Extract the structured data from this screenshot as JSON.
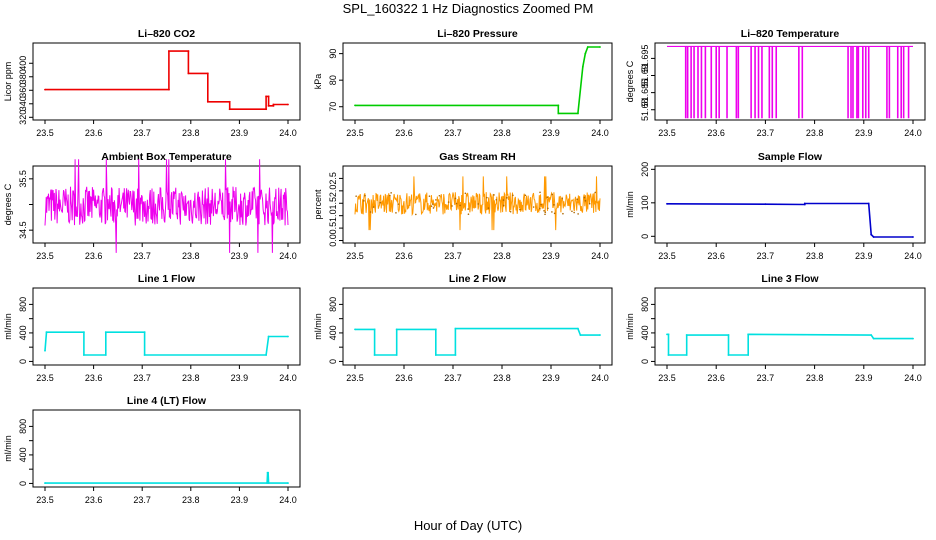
{
  "title": "SPL_160322 1 Hz Diagnostics Zoomed PM",
  "xlabel": "Hour of Day (UTC)",
  "chart_data": [
    {
      "id": "co2",
      "type": "line",
      "title": "Li–820 CO2",
      "ylabel": "Licor ppm",
      "color": "#ee0000",
      "xlim": [
        23.5,
        24.0
      ],
      "ylim": [
        316,
        430
      ],
      "xticks": [
        "23.5",
        "23.6",
        "23.7",
        "23.8",
        "23.9",
        "24.0"
      ],
      "yticks": [
        320,
        340,
        360,
        380,
        400
      ],
      "series": [
        {
          "name": "CO2",
          "x": [
            23.5,
            23.755,
            23.755,
            23.795,
            23.795,
            23.835,
            23.835,
            23.88,
            23.88,
            23.955,
            23.955,
            23.96,
            23.96,
            23.97,
            23.97,
            24.0
          ],
          "y": [
            361,
            361,
            418,
            418,
            385,
            385,
            343,
            343,
            332,
            332,
            351,
            351,
            337,
            337,
            339,
            339
          ]
        }
      ]
    },
    {
      "id": "pressure",
      "type": "line",
      "title": "Li–820 Pressure",
      "ylabel": "kPa",
      "color": "#00cc00",
      "xlim": [
        23.5,
        24.0
      ],
      "ylim": [
        65,
        94
      ],
      "xticks": [
        "23.5",
        "23.6",
        "23.7",
        "23.8",
        "23.9",
        "24.0"
      ],
      "yticks": [
        70,
        80,
        90
      ],
      "series": [
        {
          "name": "Pressure",
          "x": [
            23.5,
            23.915,
            23.915,
            23.955,
            23.965,
            23.97,
            23.975,
            24.0
          ],
          "y": [
            70.5,
            70.5,
            67.5,
            67.5,
            85,
            90,
            92.5,
            92.5
          ]
        }
      ]
    },
    {
      "id": "temperature",
      "type": "line",
      "title": "Li–820 Temperature",
      "ylabel": "degrees C",
      "color": "#ee00ee",
      "xlim": [
        23.5,
        24.0
      ],
      "ylim": [
        51.677,
        51.6995
      ],
      "xticks": [
        "23.5",
        "23.6",
        "23.7",
        "23.8",
        "23.9",
        "24.0"
      ],
      "yticks": [
        51.68,
        51.685,
        51.69,
        51.695
      ],
      "series": [
        {
          "name": "Temperature",
          "baseline": 51.6985,
          "low": 51.6775,
          "spikes": [
            23.538,
            23.542,
            23.549,
            23.555,
            23.563,
            23.57,
            23.578,
            23.59,
            23.6,
            23.606,
            23.622,
            23.641,
            23.645,
            23.671,
            23.679,
            23.686,
            23.693,
            23.708,
            23.714,
            23.722,
            23.768,
            23.775,
            23.868,
            23.874,
            23.878,
            23.886,
            23.889,
            23.898,
            23.904,
            23.91,
            23.947,
            23.952,
            23.969,
            23.976,
            23.981,
            23.991
          ]
        }
      ]
    },
    {
      "id": "ambient",
      "type": "line",
      "title": "Ambient Box Temperature",
      "ylabel": "degrees C",
      "color": "#ee00ee",
      "xlim": [
        23.5,
        24.0
      ],
      "ylim": [
        34.25,
        35.75
      ],
      "xticks": [
        "23.5",
        "23.6",
        "23.7",
        "23.8",
        "23.9",
        "24.0"
      ],
      "yticks": [
        34.5,
        35,
        35.5
      ],
      "yticklabels": [
        "34.5",
        "",
        "35.5"
      ],
      "series": [
        {
          "name": "Ambient",
          "noise": {
            "center": 34.97,
            "amp": 0.38
          }
        }
      ]
    },
    {
      "id": "rh",
      "type": "line",
      "title": "Gas Stream RH",
      "ylabel": "percent",
      "color": "#ff9900",
      "color2": "#aa6600",
      "xlim": [
        23.5,
        24.0
      ],
      "ylim": [
        -0.1,
        3.0
      ],
      "xticks": [
        "23.5",
        "23.6",
        "23.7",
        "23.8",
        "23.9",
        "24.0"
      ],
      "yticks": [
        0,
        0.5,
        1,
        1.5,
        2,
        2.5
      ],
      "yticklabels": [
        "0.0",
        "0.5",
        "1.0",
        "1.5",
        "2.0",
        "2.5"
      ],
      "series": [
        {
          "name": "RH",
          "noise": {
            "center": 1.5,
            "amp": 0.45
          }
        }
      ]
    },
    {
      "id": "sample",
      "type": "line",
      "title": "Sample Flow",
      "ylabel": "ml/min",
      "color": "#0000cc",
      "xlim": [
        23.5,
        24.0
      ],
      "ylim": [
        -20,
        210
      ],
      "xticks": [
        "23.5",
        "23.6",
        "23.7",
        "23.8",
        "23.9",
        "24.0"
      ],
      "yticks": [
        0,
        100,
        200
      ],
      "series": [
        {
          "name": "Sample",
          "x": [
            23.5,
            23.7,
            23.78,
            23.78,
            23.91,
            23.915,
            23.92,
            24.0
          ],
          "y": [
            97,
            96,
            95,
            98,
            98,
            5,
            -2,
            -2
          ]
        }
      ]
    },
    {
      "id": "line1",
      "type": "line",
      "title": "Line 1 Flow",
      "ylabel": "ml/min",
      "color": "#00e0e0",
      "xlim": [
        23.5,
        24.0
      ],
      "ylim": [
        -50,
        1030
      ],
      "xticks": [
        "23.5",
        "23.6",
        "23.7",
        "23.8",
        "23.9",
        "24.0"
      ],
      "yticks": [
        0,
        200,
        400,
        600,
        800
      ],
      "yticklabels": [
        "0",
        "",
        "400",
        "",
        "800"
      ],
      "series": [
        {
          "name": "Line 1",
          "x": [
            23.5,
            23.503,
            23.58,
            23.58,
            23.625,
            23.625,
            23.705,
            23.705,
            23.955,
            23.96,
            24.0
          ],
          "y": [
            150,
            410,
            410,
            90,
            90,
            410,
            410,
            90,
            90,
            350,
            350
          ]
        }
      ]
    },
    {
      "id": "line2",
      "type": "line",
      "title": "Line 2 Flow",
      "ylabel": "ml/min",
      "color": "#00e0e0",
      "xlim": [
        23.5,
        24.0
      ],
      "ylim": [
        -50,
        1030
      ],
      "xticks": [
        "23.5",
        "23.6",
        "23.7",
        "23.8",
        "23.9",
        "24.0"
      ],
      "yticks": [
        0,
        200,
        400,
        600,
        800
      ],
      "yticklabels": [
        "0",
        "",
        "400",
        "",
        "800"
      ],
      "series": [
        {
          "name": "Line 2",
          "x": [
            23.5,
            23.54,
            23.54,
            23.585,
            23.585,
            23.665,
            23.665,
            23.705,
            23.705,
            23.955,
            23.96,
            24.0
          ],
          "y": [
            450,
            450,
            90,
            90,
            450,
            450,
            90,
            90,
            460,
            460,
            370,
            370
          ]
        }
      ]
    },
    {
      "id": "line3",
      "type": "line",
      "title": "Line 3 Flow",
      "ylabel": "ml/min",
      "color": "#00e0e0",
      "xlim": [
        23.5,
        24.0
      ],
      "ylim": [
        -50,
        1030
      ],
      "xticks": [
        "23.5",
        "23.6",
        "23.7",
        "23.8",
        "23.9",
        "24.0"
      ],
      "yticks": [
        0,
        200,
        400,
        600,
        800
      ],
      "yticklabels": [
        "0",
        "",
        "400",
        "",
        "800"
      ],
      "series": [
        {
          "name": "Line 3",
          "x": [
            23.5,
            23.503,
            23.503,
            23.54,
            23.54,
            23.625,
            23.625,
            23.665,
            23.665,
            23.915,
            23.92,
            24.0
          ],
          "y": [
            380,
            380,
            90,
            90,
            370,
            370,
            90,
            90,
            380,
            370,
            320,
            320
          ]
        }
      ]
    },
    {
      "id": "line4",
      "type": "line",
      "title": "Line 4 (LT) Flow",
      "ylabel": "ml/min",
      "color": "#00e0e0",
      "xlim": [
        23.5,
        24.0
      ],
      "ylim": [
        -50,
        1030
      ],
      "xticks": [
        "23.5",
        "23.6",
        "23.7",
        "23.8",
        "23.9",
        "24.0"
      ],
      "yticks": [
        0,
        200,
        400,
        600,
        800
      ],
      "yticklabels": [
        "0",
        "",
        "400",
        "",
        "800"
      ],
      "series": [
        {
          "name": "Line 4",
          "x": [
            23.5,
            23.957,
            23.958,
            23.959,
            23.96,
            24.0
          ],
          "y": [
            5,
            5,
            150,
            150,
            5,
            5
          ]
        }
      ]
    }
  ]
}
